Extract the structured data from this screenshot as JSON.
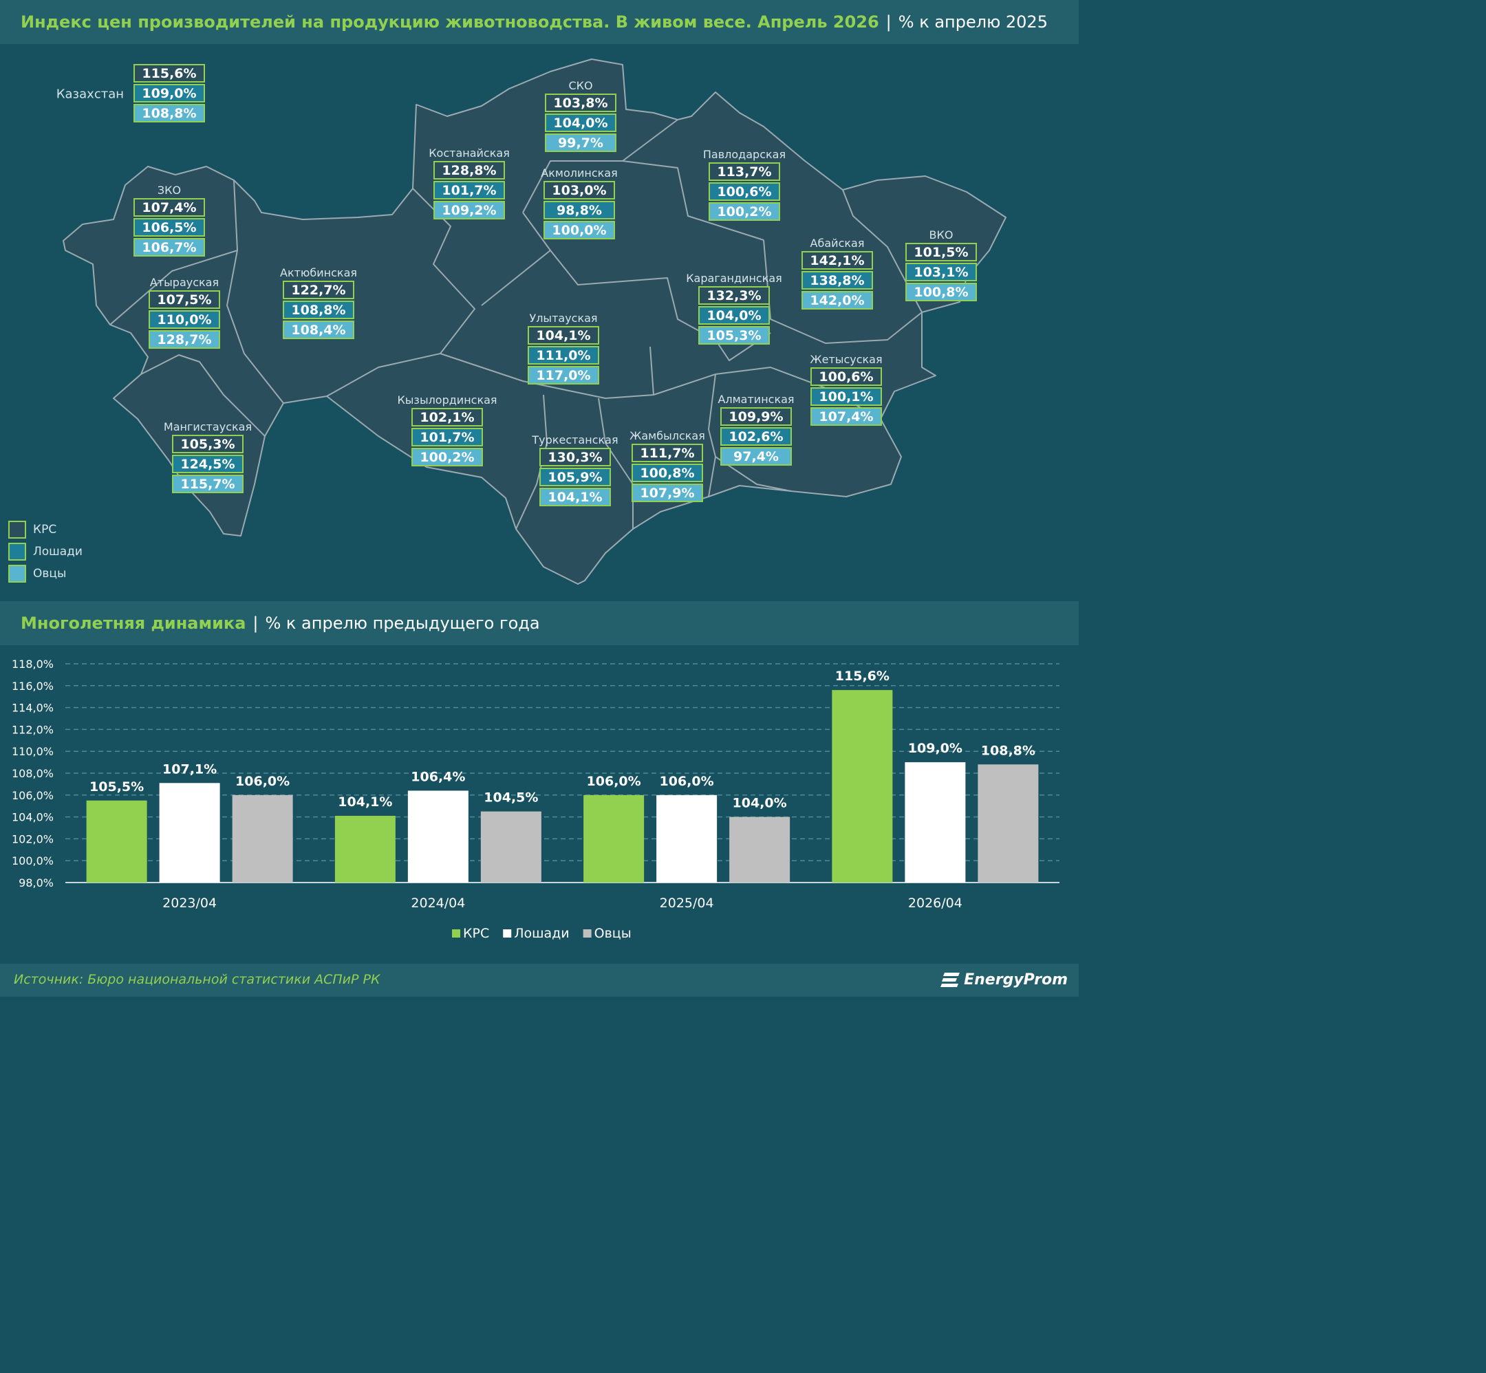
{
  "map_section": {
    "title": "Индекс цен производителей на продукцию животноводства. В живом весе. Апрель 2026",
    "subtitle": "% к апрелю 2025",
    "legend": [
      {
        "label": "КРС",
        "color": "#2b4e5c"
      },
      {
        "label": "Лошади",
        "color": "#1f7f99"
      },
      {
        "label": "Овцы",
        "color": "#58b4cf"
      }
    ],
    "regions": [
      {
        "name": "Казахстан",
        "krs": "115,6%",
        "horses": "109,0%",
        "sheep": "108,8%"
      },
      {
        "name": "ЗКО",
        "krs": "107,4%",
        "horses": "106,5%",
        "sheep": "106,7%"
      },
      {
        "name": "Атырауская",
        "krs": "107,5%",
        "horses": "110,0%",
        "sheep": "128,7%"
      },
      {
        "name": "Мангистауская",
        "krs": "105,3%",
        "horses": "124,5%",
        "sheep": "115,7%"
      },
      {
        "name": "Актюбинская",
        "krs": "122,7%",
        "horses": "108,8%",
        "sheep": "108,4%"
      },
      {
        "name": "Костанайская",
        "krs": "128,8%",
        "horses": "101,7%",
        "sheep": "109,2%"
      },
      {
        "name": "СКО",
        "krs": "103,8%",
        "horses": "104,0%",
        "sheep": "99,7%"
      },
      {
        "name": "Акмолинская",
        "krs": "103,0%",
        "horses": "98,8%",
        "sheep": "100,0%"
      },
      {
        "name": "Павлодарская",
        "krs": "113,7%",
        "horses": "100,6%",
        "sheep": "100,2%"
      },
      {
        "name": "Абайская",
        "krs": "142,1%",
        "horses": "138,8%",
        "sheep": "142,0%"
      },
      {
        "name": "ВКО",
        "krs": "101,5%",
        "horses": "103,1%",
        "sheep": "100,8%"
      },
      {
        "name": "Карагандинская",
        "krs": "132,3%",
        "horses": "104,0%",
        "sheep": "105,3%"
      },
      {
        "name": "Улытауская",
        "krs": "104,1%",
        "horses": "111,0%",
        "sheep": "117,0%"
      },
      {
        "name": "Кызылординская",
        "krs": "102,1%",
        "horses": "101,7%",
        "sheep": "100,2%"
      },
      {
        "name": "Туркестанская",
        "krs": "130,3%",
        "horses": "105,9%",
        "sheep": "104,1%"
      },
      {
        "name": "Жамбылская",
        "krs": "111,7%",
        "horses": "100,8%",
        "sheep": "107,9%"
      },
      {
        "name": "Алматинская",
        "krs": "109,9%",
        "horses": "102,6%",
        "sheep": "97,4%"
      },
      {
        "name": "Жетысуская",
        "krs": "100,6%",
        "horses": "100,1%",
        "sheep": "107,4%"
      }
    ]
  },
  "chart_section": {
    "title": "Многолетняя динамика",
    "subtitle": "% к апрелю предыдущего года"
  },
  "chart_data": {
    "type": "bar",
    "categories": [
      "2023/04",
      "2024/04",
      "2025/04",
      "2026/04"
    ],
    "series": [
      {
        "name": "КРС",
        "color": "#92d050",
        "values": [
          105.5,
          104.1,
          106.0,
          115.6
        ],
        "labels": [
          "105,5%",
          "104,1%",
          "106,0%",
          "115,6%"
        ]
      },
      {
        "name": "Лошади",
        "color": "#ffffff",
        "values": [
          107.1,
          106.4,
          106.0,
          109.0
        ],
        "labels": [
          "107,1%",
          "106,4%",
          "106,0%",
          "109,0%"
        ]
      },
      {
        "name": "Овцы",
        "color": "#bfbfbf",
        "values": [
          106.0,
          104.5,
          104.0,
          108.8
        ],
        "labels": [
          "106,0%",
          "104,5%",
          "104,0%",
          "108,8%"
        ]
      }
    ],
    "ylim": [
      98,
      118
    ],
    "yticks": [
      98,
      100,
      102,
      104,
      106,
      108,
      110,
      112,
      114,
      116,
      118
    ],
    "ytick_labels": [
      "98,0%",
      "100,0%",
      "102,0%",
      "104,0%",
      "106,0%",
      "108,0%",
      "110,0%",
      "112,0%",
      "114,0%",
      "116,0%",
      "118,0%"
    ],
    "grid": true,
    "legend_position": "bottom"
  },
  "footer": {
    "source": "Источник: Бюро национальной статистики АСПиР РК",
    "brand": "EnergyProm"
  }
}
